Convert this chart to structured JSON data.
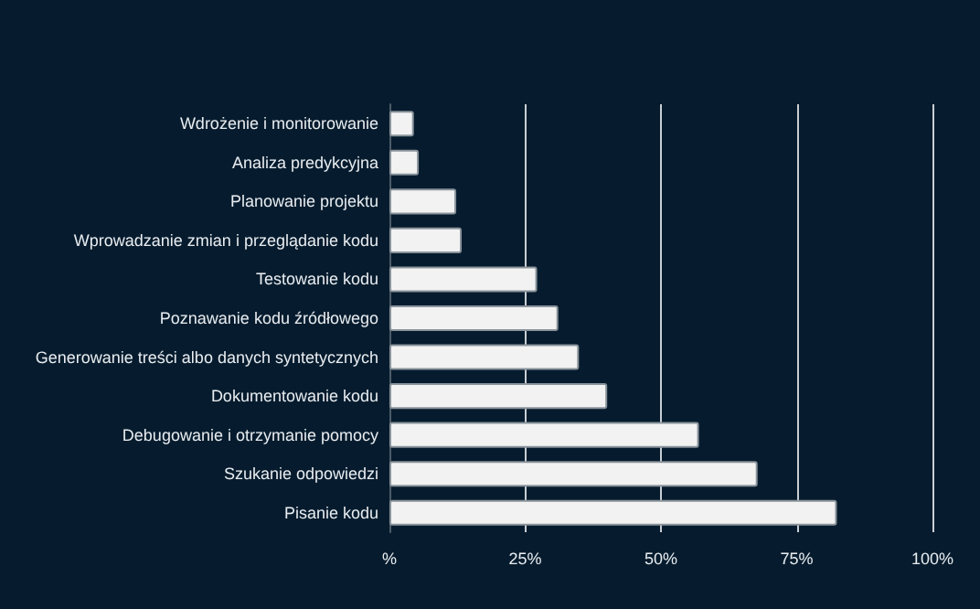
{
  "chart_data": {
    "type": "bar",
    "orientation": "horizontal",
    "categories": [
      "Wdrożenie i monitorowanie",
      "Analiza predykcyjna",
      "Planowanie projektu",
      "Wprowadzanie zmian i przeglądanie kodu",
      "Testowanie kodu",
      "Poznawanie kodu źródłowego",
      "Generowanie treści albo danych syntetycznych",
      "Dokumentowanie kodu",
      "Debugowanie i otrzymanie pomocy",
      "Szukanie odpowiedzi",
      "Pisanie kodu"
    ],
    "values": [
      4.5,
      5.4,
      12.3,
      13.3,
      27.2,
      31.1,
      34.9,
      40.1,
      57,
      67.8,
      82.4
    ],
    "color": "#f2f2f2",
    "xlim": [
      0,
      100
    ],
    "xticks": [
      {
        "value": 0,
        "label": "%"
      },
      {
        "value": 25,
        "label": "25%"
      },
      {
        "value": 50,
        "label": "50%"
      },
      {
        "value": 75,
        "label": "75%"
      },
      {
        "value": 100,
        "label": "100%"
      }
    ],
    "grid": "x"
  }
}
